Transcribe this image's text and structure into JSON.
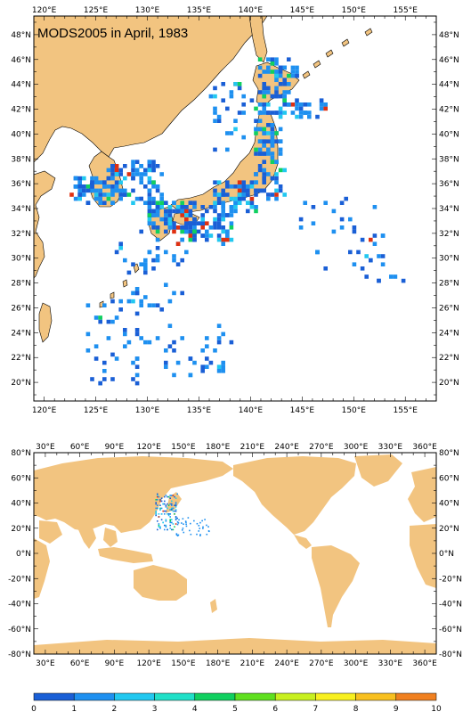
{
  "regional_map": {
    "title": "MODS2005 in April, 1983",
    "lon_ticks": [
      "120°E",
      "125°E",
      "130°E",
      "135°E",
      "140°E",
      "145°E",
      "150°E",
      "155°E"
    ],
    "lat_ticks": [
      "48°N",
      "46°N",
      "44°N",
      "42°N",
      "40°N",
      "38°N",
      "36°N",
      "34°N",
      "32°N",
      "30°N",
      "28°N",
      "26°N",
      "24°N",
      "22°N",
      "20°N"
    ],
    "lon_range": [
      119,
      158
    ],
    "lat_range": [
      18.5,
      49.5
    ]
  },
  "global_map": {
    "lon_ticks": [
      "30°E",
      "60°E",
      "90°E",
      "120°E",
      "150°E",
      "180°E",
      "210°E",
      "240°E",
      "270°E",
      "300°E",
      "330°E",
      "360°E"
    ],
    "lat_ticks": [
      "80°N",
      "60°N",
      "40°N",
      "20°N",
      "0°N",
      "-20°N",
      "-40°N",
      "-60°N",
      "-80°N"
    ],
    "lon_range": [
      20,
      370
    ],
    "lat_range": [
      -80,
      80
    ]
  },
  "colorbar": {
    "labels": [
      "0",
      "1",
      "2",
      "3",
      "4",
      "5",
      "6",
      "7",
      "8",
      "9",
      "10"
    ],
    "colors": [
      "#1a5fd6",
      "#1e90f0",
      "#22c8f0",
      "#20e0c8",
      "#10d060",
      "#60e020",
      "#c8f020",
      "#f8f020",
      "#f8c020",
      "#f08020",
      "#e03010"
    ]
  },
  "colors": {
    "land": "#f2c480",
    "ocean": "#ffffff"
  }
}
